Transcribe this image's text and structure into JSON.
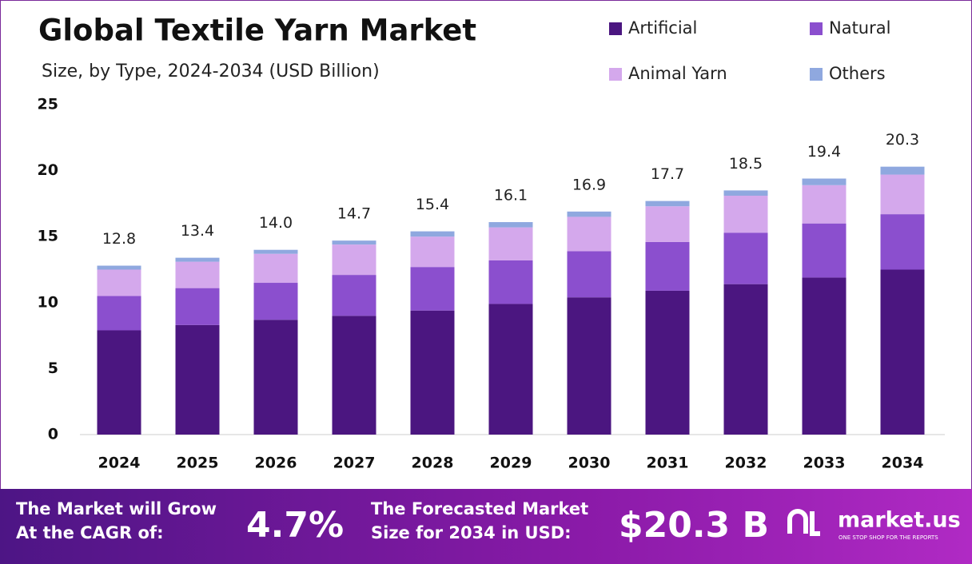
{
  "chart_data": {
    "type": "stacked_bar",
    "title": "Global Textile Yarn Market",
    "subtitle": "Size, by Type, 2024-2034 (USD Billion)",
    "categories": [
      "2024",
      "2025",
      "2026",
      "2027",
      "2028",
      "2029",
      "2030",
      "2031",
      "2032",
      "2033",
      "2034"
    ],
    "series": [
      {
        "name": "Artificial",
        "color": "#4b1680",
        "values": [
          7.9,
          8.3,
          8.7,
          9.0,
          9.4,
          9.9,
          10.4,
          10.9,
          11.4,
          11.9,
          12.5
        ]
      },
      {
        "name": "Natural",
        "color": "#8b4fce",
        "values": [
          2.6,
          2.8,
          2.8,
          3.1,
          3.3,
          3.3,
          3.5,
          3.7,
          3.9,
          4.1,
          4.2
        ]
      },
      {
        "name": "Animal Yarn",
        "color": "#d4a8ec",
        "values": [
          2.0,
          2.0,
          2.2,
          2.3,
          2.3,
          2.5,
          2.6,
          2.7,
          2.8,
          2.9,
          3.0
        ]
      },
      {
        "name": "Others",
        "color": "#8fa8df",
        "values": [
          0.3,
          0.3,
          0.3,
          0.3,
          0.4,
          0.4,
          0.4,
          0.4,
          0.4,
          0.5,
          0.6
        ]
      }
    ],
    "totals": [
      12.8,
      13.4,
      14,
      14.7,
      15.4,
      16.1,
      16.9,
      17.7,
      18.5,
      19.4,
      20.3
    ],
    "total_labels": [
      "12.8",
      "13.4",
      "14.0",
      "14.7",
      "15.4",
      "16.1",
      "16.9",
      "17.7",
      "18.5",
      "19.4",
      "20.3"
    ],
    "ylim": [
      0,
      25
    ],
    "yticks": [
      0,
      5,
      10,
      15,
      20,
      25
    ],
    "grid": false,
    "legend": "top-right"
  },
  "footer": {
    "cagr_label": [
      "The Market will Grow",
      "At the CAGR of:"
    ],
    "cagr_value": "4.7%",
    "forecast_label": [
      "The Forecasted Market",
      "Size for 2034 in USD:"
    ],
    "forecast_value": "$20.3 B",
    "brand": "market.us",
    "tagline": "ONE STOP SHOP FOR THE REPORTS"
  }
}
